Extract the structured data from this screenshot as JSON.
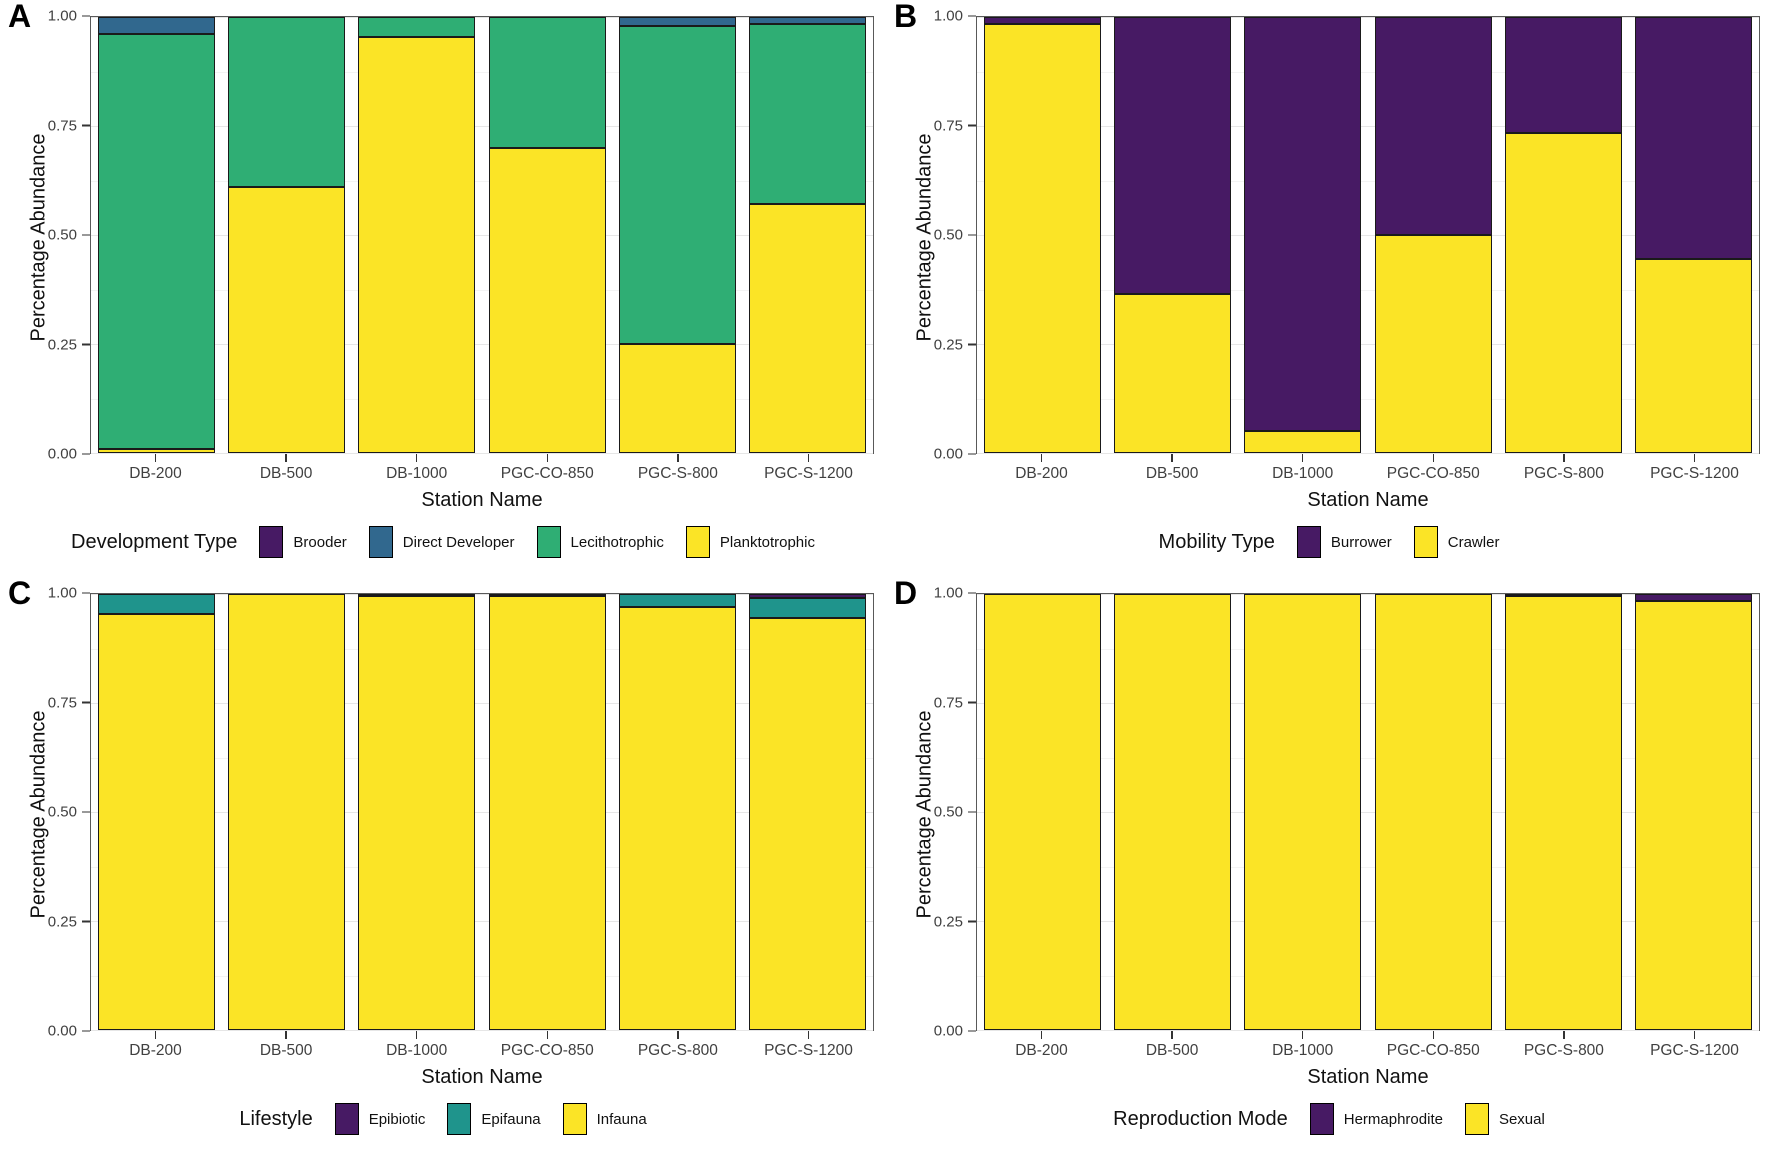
{
  "figure": {
    "ylabel": "Percentage Abundance",
    "xlabel": "Station Name",
    "background": "#ffffff",
    "palette": {
      "purple": "#471A64",
      "blue": "#31688E",
      "green": "#2FAE74",
      "teal": "#1F948C",
      "yellow": "#FBE426"
    }
  },
  "chart_data": [
    {
      "type": "bar",
      "stacked": true,
      "panel": "A",
      "legend_title": "Development Type",
      "legend_position": "bottom",
      "grid": "major+minor",
      "xlabel": "Station Name",
      "ylabel": "Percentage Abundance",
      "ylim": [
        0,
        1
      ],
      "yticks": [
        "1.00",
        "0.75",
        "0.50",
        "0.25",
        "0.00"
      ],
      "categories": [
        "DB-200",
        "DB-500",
        "DB-1000",
        "PGC-CO-850",
        "PGC-S-800",
        "PGC-S-1200"
      ],
      "series": [
        {
          "name": "Brooder",
          "color": "#471A64",
          "values": [
            0,
            0,
            0,
            0,
            0,
            0
          ]
        },
        {
          "name": "Direct Developer",
          "color": "#31688E",
          "values": [
            0.04,
            0,
            0,
            0,
            0.02,
            0.015
          ]
        },
        {
          "name": "Lecithotrophic",
          "color": "#2FAE74",
          "values": [
            0.95,
            0.39,
            0.045,
            0.3,
            0.73,
            0.415
          ]
        },
        {
          "name": "Planktotrophic",
          "color": "#FBE426",
          "values": [
            0.01,
            0.61,
            0.955,
            0.7,
            0.25,
            0.57
          ]
        }
      ]
    },
    {
      "type": "bar",
      "stacked": true,
      "panel": "B",
      "legend_title": "Mobility Type",
      "legend_position": "bottom",
      "grid": "major+minor",
      "xlabel": "Station Name",
      "ylabel": "Percentage Abundance",
      "ylim": [
        0,
        1
      ],
      "yticks": [
        "1.00",
        "0.75",
        "0.50",
        "0.25",
        "0.00"
      ],
      "categories": [
        "DB-200",
        "DB-500",
        "DB-1000",
        "PGC-CO-850",
        "PGC-S-800",
        "PGC-S-1200"
      ],
      "series": [
        {
          "name": "Burrower",
          "color": "#471A64",
          "values": [
            0.015,
            0.635,
            0.95,
            0.5,
            0.265,
            0.555
          ]
        },
        {
          "name": "Crawler",
          "color": "#FBE426",
          "values": [
            0.985,
            0.365,
            0.05,
            0.5,
            0.735,
            0.445
          ]
        }
      ]
    },
    {
      "type": "bar",
      "stacked": true,
      "panel": "C",
      "legend_title": "Lifestyle",
      "legend_position": "bottom",
      "grid": "major+minor",
      "xlabel": "Station Name",
      "ylabel": "Percentage Abundance",
      "ylim": [
        0,
        1
      ],
      "yticks": [
        "1.00",
        "0.75",
        "0.50",
        "0.25",
        "0.00"
      ],
      "categories": [
        "DB-200",
        "DB-500",
        "DB-1000",
        "PGC-CO-850",
        "PGC-S-800",
        "PGC-S-1200"
      ],
      "series": [
        {
          "name": "Epibiotic",
          "color": "#471A64",
          "values": [
            0,
            0,
            0,
            0,
            0,
            0.01
          ]
        },
        {
          "name": "Epifauna",
          "color": "#1F948C",
          "values": [
            0.045,
            0,
            0.005,
            0.005,
            0.03,
            0.045
          ]
        },
        {
          "name": "Infauna",
          "color": "#FBE426",
          "values": [
            0.955,
            1.0,
            0.995,
            0.995,
            0.97,
            0.945
          ]
        }
      ]
    },
    {
      "type": "bar",
      "stacked": true,
      "panel": "D",
      "legend_title": "Reproduction Mode",
      "legend_position": "bottom",
      "grid": "major+minor",
      "xlabel": "Station Name",
      "ylabel": "Percentage Abundance",
      "ylim": [
        0,
        1
      ],
      "yticks": [
        "1.00",
        "0.75",
        "0.50",
        "0.25",
        "0.00"
      ],
      "categories": [
        "DB-200",
        "DB-500",
        "DB-1000",
        "PGC-CO-850",
        "PGC-S-800",
        "PGC-S-1200"
      ],
      "series": [
        {
          "name": "Hermaphrodite",
          "color": "#471A64",
          "values": [
            0,
            0,
            0,
            0,
            0.005,
            0.015
          ]
        },
        {
          "name": "Sexual",
          "color": "#FBE426",
          "values": [
            1.0,
            1.0,
            1.0,
            1.0,
            0.995,
            0.985
          ]
        }
      ]
    }
  ]
}
